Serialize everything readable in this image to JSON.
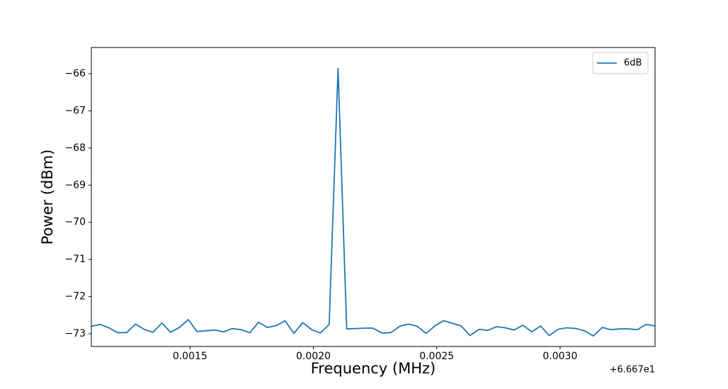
{
  "chart_data": {
    "type": "line",
    "xlabel": "Frequency (MHz)",
    "ylabel": "Power (dBm)",
    "x_offset_label": "+6.667e1",
    "x": [
      0.0011,
      0.001136,
      0.001171,
      0.001207,
      0.001243,
      0.001279,
      0.001314,
      0.00135,
      0.001386,
      0.001421,
      0.001457,
      0.001493,
      0.001528,
      0.001564,
      0.0016,
      0.001636,
      0.001671,
      0.001707,
      0.001743,
      0.001778,
      0.001814,
      0.00185,
      0.001885,
      0.001921,
      0.001957,
      0.001993,
      0.002028,
      0.002064,
      0.0021,
      0.002135,
      0.002171,
      0.002207,
      0.002242,
      0.002278,
      0.002314,
      0.00235,
      0.002385,
      0.002421,
      0.002457,
      0.002492,
      0.002528,
      0.002564,
      0.002599,
      0.002635,
      0.002671,
      0.002707,
      0.002742,
      0.002778,
      0.002814,
      0.002849,
      0.002885,
      0.002921,
      0.002956,
      0.002992,
      0.003028,
      0.003064,
      0.003099,
      0.003135,
      0.003171,
      0.003206,
      0.003242,
      0.003278,
      0.003313,
      0.003349,
      0.003385
    ],
    "series": [
      {
        "name": "6dB",
        "color": "#1f77b4",
        "values": [
          -72.8,
          -72.75,
          -72.84,
          -72.97,
          -72.97,
          -72.74,
          -72.88,
          -72.96,
          -72.71,
          -72.96,
          -72.83,
          -72.62,
          -72.94,
          -72.92,
          -72.9,
          -72.95,
          -72.86,
          -72.89,
          -72.97,
          -72.69,
          -72.83,
          -72.78,
          -72.65,
          -72.99,
          -72.7,
          -72.89,
          -72.98,
          -72.75,
          -65.86,
          -72.87,
          -72.86,
          -72.85,
          -72.85,
          -72.98,
          -72.97,
          -72.8,
          -72.74,
          -72.8,
          -72.99,
          -72.79,
          -72.65,
          -72.72,
          -72.79,
          -73.05,
          -72.88,
          -72.91,
          -72.81,
          -72.84,
          -72.9,
          -72.77,
          -72.95,
          -72.79,
          -73.05,
          -72.88,
          -72.84,
          -72.86,
          -72.92,
          -73.06,
          -72.83,
          -72.89,
          -72.87,
          -72.87,
          -72.89,
          -72.75,
          -72.79
        ]
      }
    ],
    "xlim": [
      0.0011,
      0.003385
    ],
    "xticks": [
      0.0015,
      {
        "value": 0.002,
        "label": "0.0020"
      },
      0.0025,
      {
        "value": 0.003,
        "label": "0.0030"
      }
    ],
    "ylim": [
      -73.343,
      -65.294
    ],
    "yticks": [
      {
        "value": -73,
        "label": "−73"
      },
      {
        "value": -72,
        "label": "−72"
      },
      {
        "value": -71,
        "label": "−71"
      },
      {
        "value": -70,
        "label": "−70"
      },
      {
        "value": -69,
        "label": "−69"
      },
      {
        "value": -68,
        "label": "−68"
      },
      {
        "value": -67,
        "label": "−67"
      },
      {
        "value": -66,
        "label": "−66"
      }
    ],
    "grid": false,
    "legend": "upper right"
  }
}
